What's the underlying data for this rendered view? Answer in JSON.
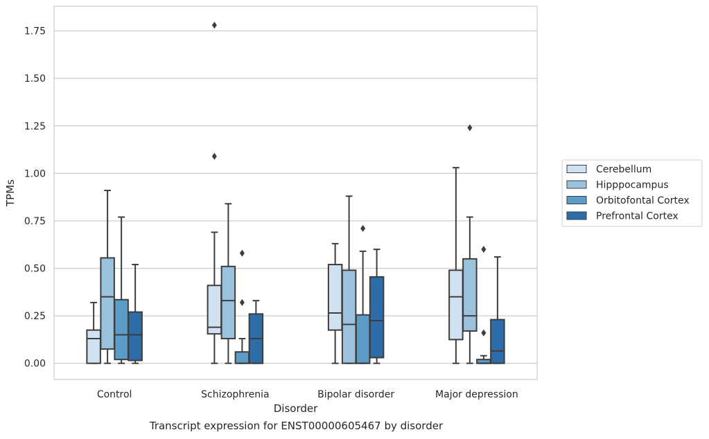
{
  "caption": "Transcript expression for ENST00000605467 by disorder",
  "chart_data": {
    "type": "box",
    "title": "",
    "xlabel": "Disorder",
    "ylabel": "TPMs",
    "ylim": [
      -0.085,
      1.88
    ],
    "yticks": [
      0.0,
      0.25,
      0.5,
      0.75,
      1.0,
      1.25,
      1.5,
      1.75
    ],
    "ytick_labels": [
      "0.00",
      "0.25",
      "0.50",
      "0.75",
      "1.00",
      "1.25",
      "1.50",
      "1.75"
    ],
    "grid": "horizontal",
    "legend_position": "right",
    "categories": [
      "Control",
      "Schizophrenia",
      "Bipolar disorder",
      "Major depression"
    ],
    "series": [
      {
        "name": "Cerebellum",
        "color": "#d0e1f2",
        "boxes": [
          {
            "whislo": 0.0,
            "q1": 0.0,
            "med": 0.13,
            "q3": 0.175,
            "whishi": 0.32,
            "fliers": []
          },
          {
            "whislo": 0.0,
            "q1": 0.155,
            "med": 0.19,
            "q3": 0.41,
            "whishi": 0.69,
            "fliers": [
              1.09,
              1.78
            ]
          },
          {
            "whislo": 0.0,
            "q1": 0.175,
            "med": 0.265,
            "q3": 0.52,
            "whishi": 0.63,
            "fliers": []
          },
          {
            "whislo": 0.0,
            "q1": 0.125,
            "med": 0.35,
            "q3": 0.49,
            "whishi": 1.03,
            "fliers": []
          }
        ]
      },
      {
        "name": "Hipppocampus",
        "color": "#9ac1dd",
        "boxes": [
          {
            "whislo": 0.0,
            "q1": 0.075,
            "med": 0.35,
            "q3": 0.555,
            "whishi": 0.91,
            "fliers": []
          },
          {
            "whislo": 0.0,
            "q1": 0.13,
            "med": 0.33,
            "q3": 0.51,
            "whishi": 0.84,
            "fliers": []
          },
          {
            "whislo": 0.0,
            "q1": 0.0,
            "med": 0.205,
            "q3": 0.49,
            "whishi": 0.88,
            "fliers": []
          },
          {
            "whislo": 0.0,
            "q1": 0.17,
            "med": 0.25,
            "q3": 0.55,
            "whishi": 0.77,
            "fliers": [
              1.24
            ]
          }
        ]
      },
      {
        "name": "Orbitofontal Cortex",
        "color": "#5b9cc8",
        "boxes": [
          {
            "whislo": 0.0,
            "q1": 0.02,
            "med": 0.15,
            "q3": 0.335,
            "whishi": 0.77,
            "fliers": []
          },
          {
            "whislo": 0.0,
            "q1": 0.0,
            "med": 0.0,
            "q3": 0.06,
            "whishi": 0.13,
            "fliers": [
              0.32,
              0.58
            ]
          },
          {
            "whislo": 0.0,
            "q1": 0.0,
            "med": 0.0,
            "q3": 0.255,
            "whishi": 0.59,
            "fliers": [
              0.71
            ]
          },
          {
            "whislo": 0.0,
            "q1": 0.0,
            "med": 0.0,
            "q3": 0.02,
            "whishi": 0.04,
            "fliers": [
              0.16,
              0.6
            ]
          }
        ]
      },
      {
        "name": "Prefrontal Cortex",
        "color": "#2b6ca9",
        "boxes": [
          {
            "whislo": 0.0,
            "q1": 0.015,
            "med": 0.15,
            "q3": 0.27,
            "whishi": 0.52,
            "fliers": []
          },
          {
            "whislo": 0.0,
            "q1": 0.0,
            "med": 0.13,
            "q3": 0.26,
            "whishi": 0.33,
            "fliers": []
          },
          {
            "whislo": 0.0,
            "q1": 0.03,
            "med": 0.225,
            "q3": 0.455,
            "whishi": 0.6,
            "fliers": []
          },
          {
            "whislo": 0.0,
            "q1": 0.0,
            "med": 0.065,
            "q3": 0.23,
            "whishi": 0.56,
            "fliers": []
          }
        ]
      }
    ]
  }
}
